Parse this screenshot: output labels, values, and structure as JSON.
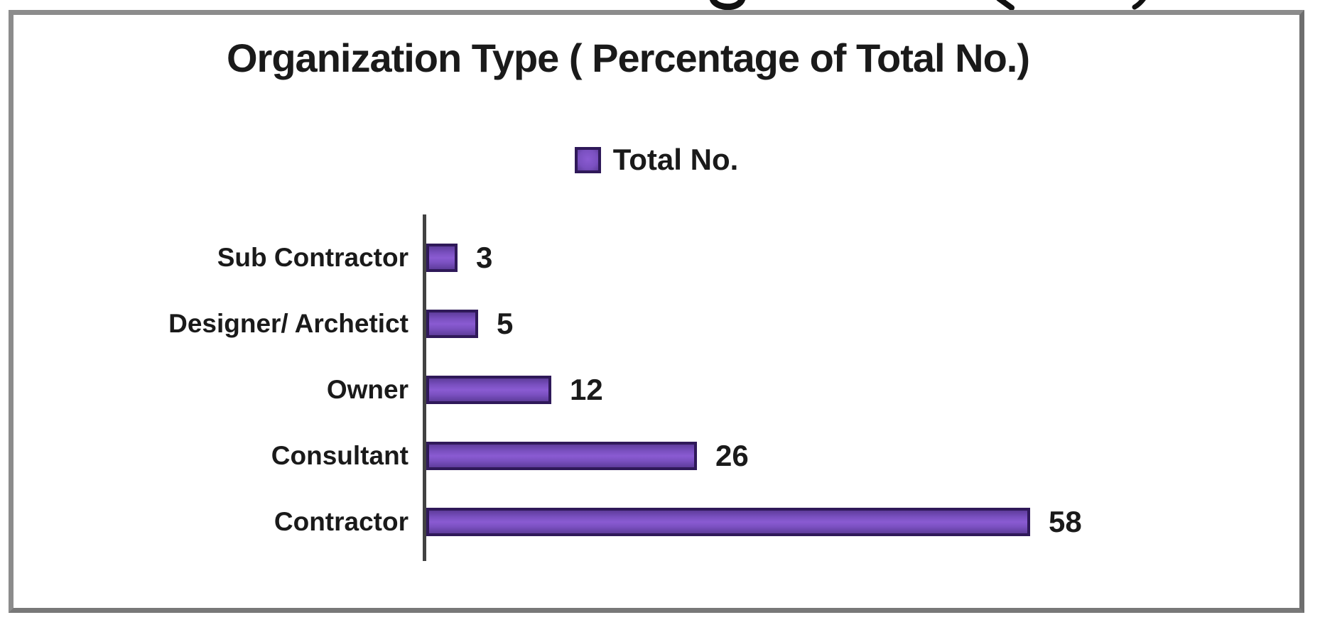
{
  "colors": {
    "bar_fill": "#7A50C0",
    "bar_fill_light": "#8A5BD2",
    "bar_fill_dark": "#5E3C9B",
    "bar_border": "#2F1959",
    "axis_line": "#424242",
    "frame_border": "#8C8C8C",
    "text": "#1A1A1A",
    "background": "#FFFFFF"
  },
  "chart_data": {
    "type": "bar",
    "orientation": "horizontal",
    "title": "Organization Type ( Percentage of Total No.)",
    "legend": {
      "position": "top-center",
      "entries": [
        {
          "label": "Total No.",
          "color": "#7A50C0"
        }
      ]
    },
    "categories": [
      "Sub Contractor",
      "Designer/ Archetict",
      "Owner",
      "Consultant",
      "Contractor"
    ],
    "series": [
      {
        "name": "Total No.",
        "values": [
          3,
          5,
          12,
          26,
          58
        ]
      }
    ],
    "values": [
      3,
      5,
      12,
      26,
      58
    ],
    "data_labels": [
      "3",
      "5",
      "12",
      "26",
      "58"
    ],
    "xmax": 58,
    "grid": false,
    "value_axis_visible": false
  }
}
